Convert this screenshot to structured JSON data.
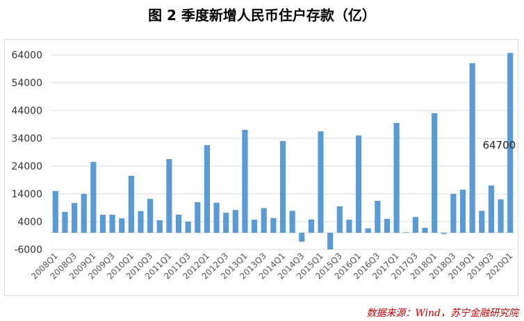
{
  "chart_data": {
    "type": "bar",
    "title": "图 2  季度新增人民币住户存款（亿）",
    "categories": [
      "2008Q1",
      "2008Q2",
      "2008Q3",
      "2008Q4",
      "2009Q1",
      "2009Q2",
      "2009Q3",
      "2009Q4",
      "2010Q1",
      "2010Q2",
      "2010Q3",
      "2010Q4",
      "2011Q1",
      "2011Q2",
      "2011Q3",
      "2011Q4",
      "2012Q1",
      "2012Q2",
      "2012Q3",
      "2012Q4",
      "2013Q1",
      "2013Q2",
      "2013Q3",
      "2013Q4",
      "2014Q1",
      "2014Q2",
      "2014Q3",
      "2014Q4",
      "2015Q1",
      "2015Q2",
      "2015Q3",
      "2015Q4",
      "2016Q1",
      "2016Q2",
      "2016Q3",
      "2016Q4",
      "2017Q1",
      "2017Q2",
      "2017Q3",
      "2017Q4",
      "2018Q1",
      "2018Q2",
      "2018Q3",
      "2018Q4",
      "2019Q1",
      "2019Q2",
      "2019Q3",
      "2019Q4",
      "2020Q1"
    ],
    "x_tick_labels": [
      "2008Q1",
      "2008Q3",
      "2009Q1",
      "2009Q3",
      "2010Q1",
      "2010Q3",
      "2011Q1",
      "2011Q3",
      "2012Q1",
      "2012Q3",
      "2013Q1",
      "2013Q3",
      "2014Q1",
      "2014Q3",
      "2015Q1",
      "2015Q3",
      "2016Q1",
      "2016Q3",
      "2017Q1",
      "2017Q3",
      "2018Q1",
      "2018Q3",
      "2019Q1",
      "2019Q3",
      "2020Q1"
    ],
    "values": [
      15000,
      7500,
      10700,
      14000,
      25500,
      6500,
      6500,
      5200,
      20500,
      7800,
      12200,
      4500,
      26500,
      6500,
      4000,
      11000,
      31500,
      10800,
      7200,
      8200,
      37000,
      4700,
      8900,
      5300,
      33000,
      7900,
      -3200,
      4800,
      36500,
      -6000,
      9500,
      4700,
      35000,
      1600,
      11500,
      5000,
      39500,
      200,
      5700,
      1800,
      43000,
      -400,
      14000,
      15500,
      61000,
      7900,
      17000,
      12000,
      64700
    ],
    "yticks": [
      -6000,
      4000,
      14000,
      24000,
      34000,
      44000,
      54000,
      64000
    ],
    "ylim": [
      -6000,
      64000
    ],
    "annotation": "64700",
    "grid": true,
    "color": "#5b9bd5",
    "source": "数据来源：Wind，苏宁金融研究院"
  }
}
